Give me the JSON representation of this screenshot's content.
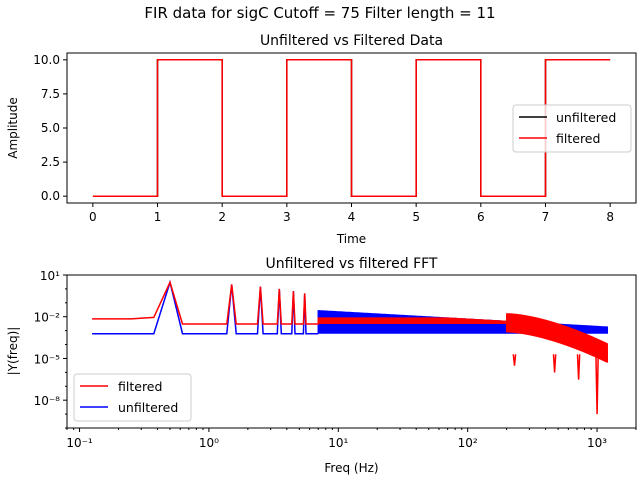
{
  "suptitle": "FIR data for sigC  Cutoff = 75 Filter length = 11",
  "chart_data": [
    {
      "type": "line",
      "title": "Unfiltered vs Filtered Data",
      "xlabel": "Time",
      "ylabel": "Amplitude",
      "xlim": [
        -0.4,
        8.4
      ],
      "ylim": [
        -0.5,
        10.5
      ],
      "xticks": [
        0,
        1,
        2,
        3,
        4,
        5,
        6,
        7,
        8
      ],
      "yticks": [
        0.0,
        2.5,
        5.0,
        7.5,
        10.0
      ],
      "xtick_labels": [
        "0",
        "1",
        "2",
        "3",
        "4",
        "5",
        "6",
        "7",
        "8"
      ],
      "ytick_labels": [
        "0.0",
        "2.5",
        "5.0",
        "7.5",
        "10.0"
      ],
      "legend_position": "right",
      "series": [
        {
          "name": "unfiltered",
          "color": "#000000",
          "x": [
            0,
            1,
            1,
            2,
            2,
            3,
            3,
            4,
            4,
            5,
            5,
            6,
            6,
            7,
            7,
            8
          ],
          "y": [
            0,
            0,
            10,
            10,
            0,
            0,
            10,
            10,
            0,
            0,
            10,
            10,
            0,
            0,
            10,
            10
          ]
        },
        {
          "name": "filtered",
          "color": "#ff0000",
          "x": [
            0,
            1,
            1,
            2,
            2,
            3,
            3,
            4,
            4,
            5,
            5,
            6,
            6,
            7,
            7,
            8
          ],
          "y": [
            0,
            0,
            10,
            10,
            0,
            0,
            10,
            10,
            0,
            0,
            10,
            10,
            0,
            0,
            10,
            10
          ]
        }
      ]
    },
    {
      "type": "line",
      "title": "Unfiltered vs filtered FFT",
      "xlabel": "Freq (Hz)",
      "ylabel": "|Y(freq)|",
      "xscale": "log",
      "yscale": "log",
      "xlim": [
        0.08,
        2000
      ],
      "ylim": [
        1e-10,
        10
      ],
      "xticks": [
        0.1,
        1,
        10,
        100,
        1000
      ],
      "yticks": [
        10,
        0.01,
        1e-05,
        1e-08
      ],
      "xtick_labels": [
        "10⁻¹",
        "10⁰",
        "10¹",
        "10²",
        "10³"
      ],
      "ytick_labels": [
        "10¹",
        "10⁻²",
        "10⁻⁵",
        "10⁻⁸"
      ],
      "legend_position": "lower left",
      "series": [
        {
          "name": "filtered",
          "color": "#ff0000",
          "freq_range": [
            0.125,
            1200
          ],
          "peak_frequencies": [
            0.5,
            1.5,
            2.5,
            3.5,
            4.5,
            5.5
          ],
          "peak_value": 3,
          "floor_low_freq": 0.007,
          "floor_mid_freq": 0.003,
          "rolloff_start_hz": 200,
          "rolloff_end_value": 1e-09
        },
        {
          "name": "unfiltered",
          "color": "#0000ff",
          "freq_range": [
            0.125,
            1200
          ],
          "peak_frequencies": [
            0.5,
            1.5,
            2.5,
            3.5,
            4.5,
            5.5
          ],
          "peak_value": 3,
          "floor_value": 0.0006,
          "band_top_start": 0.03,
          "band_top_end": 0.002
        }
      ]
    }
  ]
}
